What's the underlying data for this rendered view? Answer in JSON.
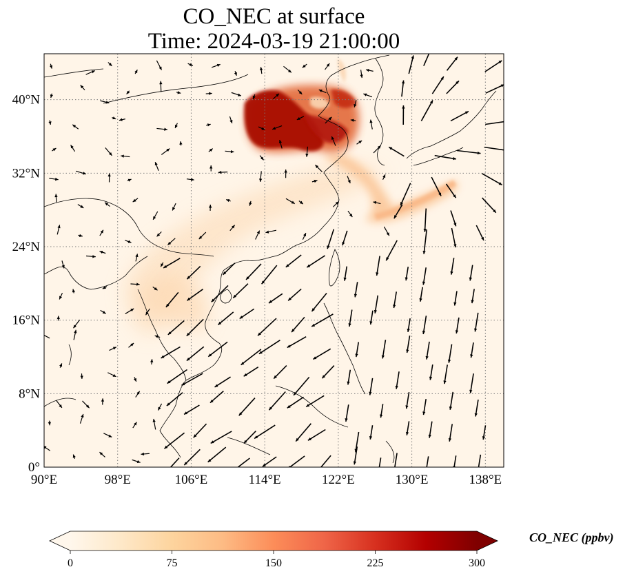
{
  "title": {
    "line1": "CO_NEC at surface",
    "line2": "Time: 2024-03-19 21:00:00"
  },
  "map": {
    "lon_range": [
      90,
      140
    ],
    "lat_range": [
      0,
      45
    ],
    "x_ticks": [
      "90°E",
      "98°E",
      "106°E",
      "114°E",
      "122°E",
      "130°E",
      "138°E"
    ],
    "x_tick_values": [
      90,
      98,
      106,
      114,
      122,
      130,
      138
    ],
    "y_ticks": [
      "0°",
      "8°N",
      "16°N",
      "24°N",
      "32°N",
      "40°N"
    ],
    "y_tick_values": [
      0,
      8,
      16,
      24,
      32,
      40
    ],
    "gridlines": "dotted",
    "coastlines": true,
    "vectors": "surface wind arrows"
  },
  "colorbar": {
    "label": "CO_NEC (ppbv)",
    "ticks": [
      "0",
      "75",
      "150",
      "225",
      "300"
    ],
    "tick_values": [
      0,
      75,
      150,
      225,
      300
    ],
    "range": [
      0,
      300
    ],
    "extend": "both",
    "colormap": "OrRd",
    "colors": [
      "#fff7ec",
      "#fee8c8",
      "#fdd49e",
      "#fdbb84",
      "#fc8d59",
      "#ef6548",
      "#d7301f",
      "#b30000",
      "#7f0000"
    ]
  }
}
